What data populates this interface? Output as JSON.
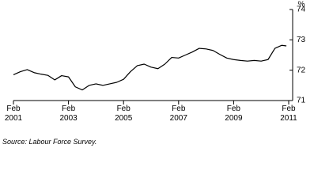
{
  "chart_data": {
    "type": "line",
    "y_label": "%",
    "source": "Source: Labour Force Survey.",
    "color": "#000000",
    "x": [
      2001.083,
      2001.333,
      2001.583,
      2001.833,
      2002.083,
      2002.333,
      2002.583,
      2002.833,
      2003.083,
      2003.333,
      2003.583,
      2003.833,
      2004.083,
      2004.333,
      2004.583,
      2004.833,
      2005.083,
      2005.333,
      2005.583,
      2005.833,
      2006.083,
      2006.333,
      2006.583,
      2006.833,
      2007.083,
      2007.333,
      2007.583,
      2007.833,
      2008.083,
      2008.333,
      2008.583,
      2008.833,
      2009.083,
      2009.333,
      2009.583,
      2009.833,
      2010.083,
      2010.333,
      2010.583,
      2010.833,
      2011.0
    ],
    "values": [
      71.85,
      71.95,
      72.02,
      71.92,
      71.87,
      71.83,
      71.68,
      71.82,
      71.78,
      71.45,
      71.35,
      71.5,
      71.55,
      71.5,
      71.55,
      71.6,
      71.7,
      71.95,
      72.15,
      72.2,
      72.1,
      72.05,
      72.2,
      72.42,
      72.4,
      72.5,
      72.6,
      72.72,
      72.7,
      72.65,
      72.52,
      72.4,
      72.35,
      72.32,
      72.3,
      72.32,
      72.3,
      72.35,
      72.72,
      72.82,
      72.8
    ],
    "xlim": [
      2001.083,
      2011.083
    ],
    "xticks": [
      {
        "value": 2001.083,
        "label": "Feb 2001"
      },
      {
        "value": 2003.083,
        "label": "Feb 2003"
      },
      {
        "value": 2005.083,
        "label": "Feb 2005"
      },
      {
        "value": 2007.083,
        "label": "Feb 2007"
      },
      {
        "value": 2009.083,
        "label": "Feb 2009"
      },
      {
        "value": 2011.083,
        "label": "Feb 2011"
      }
    ],
    "ylim": [
      71,
      74
    ],
    "yticks": [
      71,
      72,
      73,
      74
    ]
  }
}
